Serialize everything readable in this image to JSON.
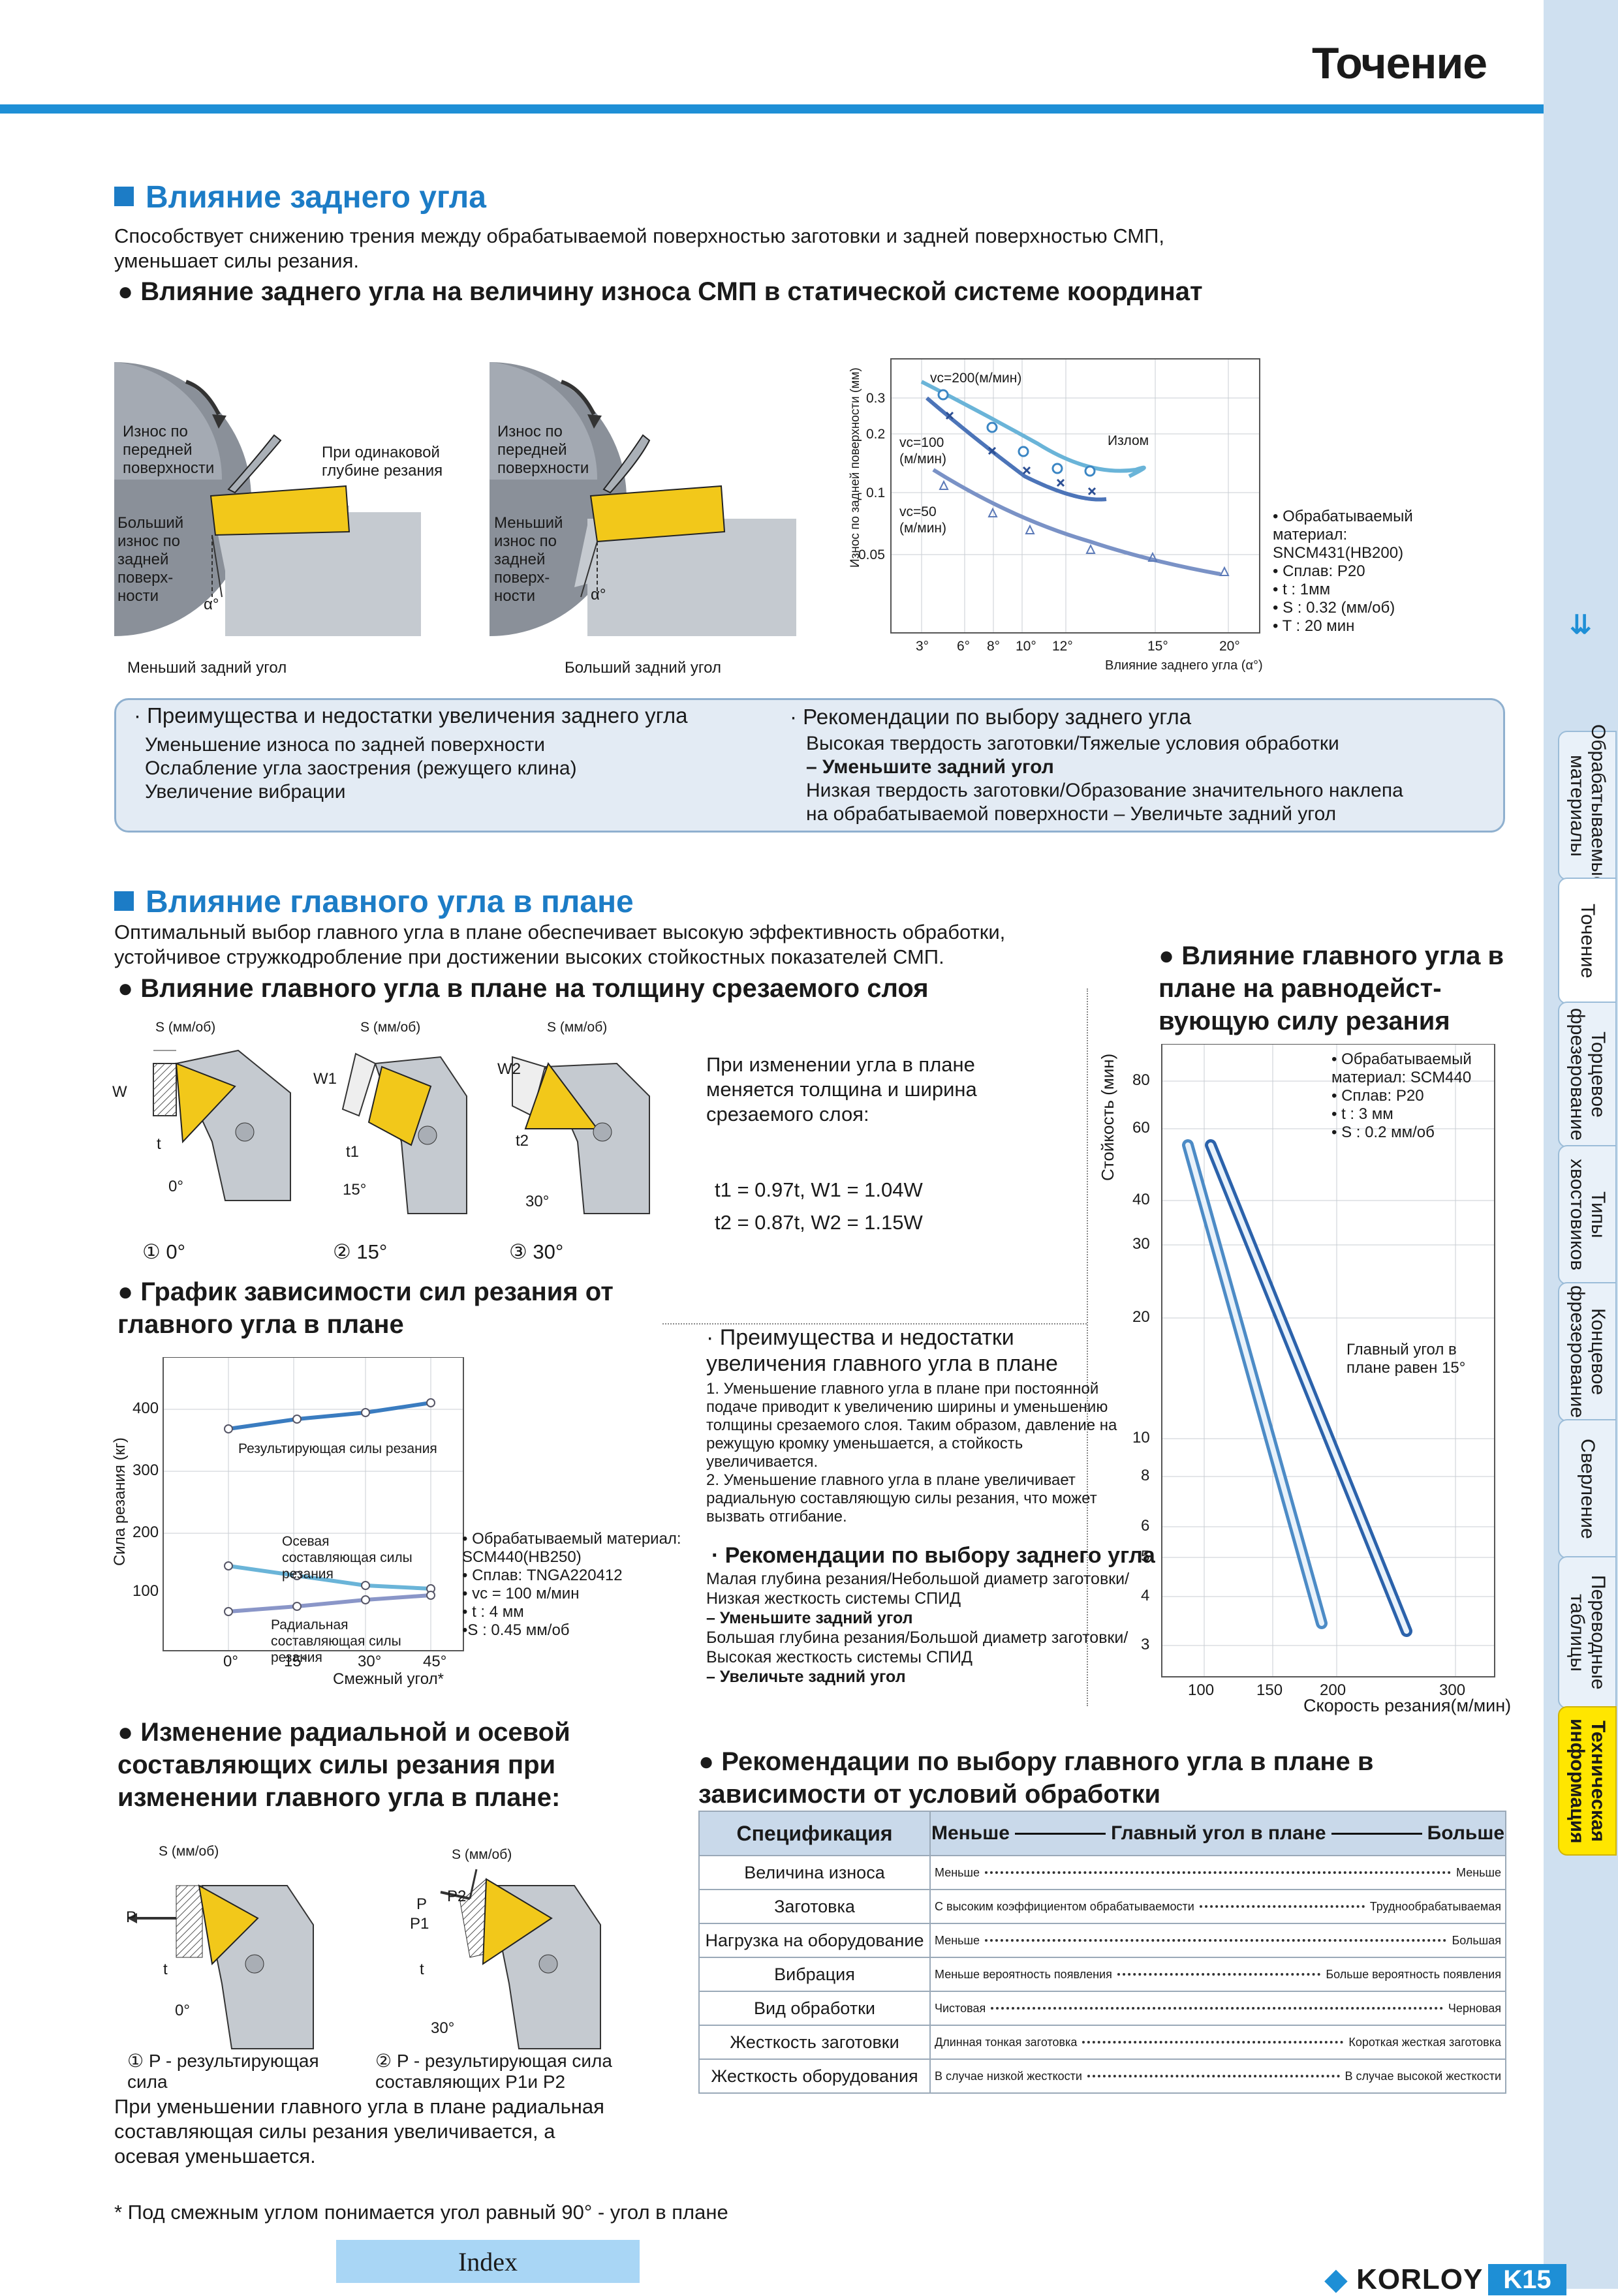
{
  "header": {
    "title": "Точение"
  },
  "section1": {
    "title": "Влияние заднего угла",
    "text": "Способствует снижению трения между обрабатываемой поверхностью заготовки и задней поверхностью СМП, уменьшает силы резания.",
    "subtitle": "Влияние заднего угла на величину износа СМП в статической системе координат",
    "diag_left": {
      "label_wear_front": "Износ по передней поверхности",
      "label_same_depth": "При одинаковой глубине резания",
      "label_more_wear": "Больший износ по задней поверх-ности",
      "angle": "α°",
      "caption": "Меньший задний угол"
    },
    "diag_right": {
      "label_wear_front": "Износ по передней поверхности",
      "label_less_wear": "Меньший износ по задней поверх-ности",
      "angle": "α°",
      "caption": "Больший задний угол"
    },
    "wear_chart": {
      "ylabel": "Износ по задней поверхности (мм)",
      "xlabel": "Влияние заднего угла (α°)",
      "y_ticks": [
        "0.3",
        "0.2",
        "0.1",
        "0.05"
      ],
      "x_ticks": [
        "3°",
        "6°",
        "8°",
        "10°",
        "12°",
        "15°",
        "20°"
      ],
      "annotation": "Излом",
      "series_labels": [
        "vc=200(м/мин)",
        "vc=100 (м/мин)",
        "vc=50 (м/мин)"
      ]
    },
    "conditions": [
      "• Обрабатываемый материал: SNCM431(HB200)",
      "• Сплав: P20",
      "• t : 1мм",
      "• S : 0.32 (мм/об)",
      "• T : 20 мин"
    ],
    "box_left_title": "· Преимущества и недостатки увеличения заднего угла",
    "box_left_items": [
      "Уменьшение износа по задней поверхности",
      "Ослабление угла заострения (режущего клина)",
      "Увеличение вибрации"
    ],
    "box_right_title": "· Рекомендации по выбору заднего угла",
    "box_right_items": [
      "Высокая твердость заготовки/Тяжелые условия обработки",
      "– Уменьшите задний угол",
      "Низкая твердость заготовки/Образование значительного наклепа",
      "на обрабатываемой поверхности – Увеличьте задний угол"
    ]
  },
  "section2": {
    "title": "Влияние главного угла в плане",
    "text": "Оптимальный выбор главного угла в плане обеспечивает высокую эффективность обработки, устойчивое стружкодробление при достижении высоких стойкостных показателей СМП.",
    "subtitle": "Влияние главного угла в плане на толщину срезаемого слоя",
    "inserts": [
      {
        "s": "S (мм/об)",
        "w": "W",
        "t": "t",
        "angle": "0°",
        "caption": "① 0°"
      },
      {
        "s": "S (мм/об)",
        "w": "W1",
        "t": "t1",
        "angle": "15°",
        "caption": "② 15°"
      },
      {
        "s": "S (мм/об)",
        "w": "W2",
        "t": "t2",
        "angle": "30°",
        "caption": "③ 30°"
      }
    ],
    "change_text": "При изменении угла в плане меняется толщина и ширина срезаемого слоя:",
    "formula1": "t1 = 0.97t,  W1 = 1.04W",
    "formula2": "t2 = 0.87t,  W2 = 1.15W",
    "force_chart_title": "График зависимости сил резания от главного угла в плане",
    "force_chart": {
      "ylabel": "Сила резания (кг)",
      "xlabel": "Смежный угол*",
      "y_ticks": [
        "400",
        "300",
        "200",
        "100"
      ],
      "x_ticks": [
        "0°",
        "15°",
        "30°",
        "45°"
      ],
      "label_result": "Результирующая силы резания",
      "label_axial": "Осевая составляющая силы резания",
      "label_radial": "Радиальная составляющая силы резания"
    },
    "force_conditions": [
      "• Обрабатываемый материал: SCM440(HB250)",
      "• Сплав: TNGA220412",
      "• vc = 100 м/мин",
      "• t : 4 мм",
      "•S : 0.45 мм/об"
    ],
    "adv_title": "· Преимущества и недостатки увеличения главного угла в плане",
    "adv_items": [
      "1. Уменьшение главного угла в плане при постоянной подаче приводит к увеличению ширины и уменьшению толщины срезаемого слоя. Таким образом, давление на режущую кромку уменьшается, а стойкость увеличивается.",
      "2. Уменьшение главного угла в плане увеличивает радиальную составляющую силы резания, что может вызвать отгибание."
    ],
    "rec_title": "· Рекомендации по выбору заднего угла",
    "rec_items": [
      "Малая глубина резания/Небольшой диаметр заготовки/ Низкая жесткость системы СПИД",
      "– Уменьшите задний угол",
      "Большая глубина резания/Большой диаметр заготовки/ Высокая жесткость системы СПИД",
      "– Увеличьте задний угол"
    ],
    "life_title": "Влияние главного угла в плане на равнодейст-вующую силу резания",
    "life_chart": {
      "ylabel": "Стойкость (мин)",
      "xlabel": "Скорость резания(м/мин)",
      "y_ticks": [
        "80",
        "60",
        "40",
        "30",
        "20",
        "10",
        "8",
        "6",
        "5",
        "4",
        "3"
      ],
      "x_ticks": [
        "100",
        "150",
        "200",
        "300"
      ],
      "conditions": [
        "• Обрабатываемый материал: SCM440",
        "• Сплав: P20",
        "• t : 3 мм",
        "• S : 0.2 мм/об"
      ],
      "annotation": "Главный угол в плане равен 15°"
    },
    "radial_title": "Изменение радиальной и осевой составляющих силы резания при изменении главного угла в плане:",
    "radial_diag1": {
      "s": "S (мм/об)",
      "p": "P",
      "t": "t",
      "angle": "0°",
      "caption": "① P - результирующая сила"
    },
    "radial_diag2": {
      "s": "S (мм/об)",
      "p": "P",
      "p1": "P1",
      "p2": "P2",
      "t": "t",
      "angle": "30°",
      "caption": "② P - результирующая сила составляющих P1и P2"
    },
    "radial_text": "При уменьшении главного угла в плане радиальная составляющая силы резания увеличивается, а осевая уменьшается.",
    "footnote": "* Под смежным углом понимается угол равный 90° - угол в плане",
    "table_title": "Рекомендации по выбору главного угла в плане в зависимости от условий обработки",
    "table": {
      "head_spec": "Спецификация",
      "head_less": "Меньше",
      "head_mid": "Главный угол в плане",
      "head_more": "Больше",
      "rows": [
        {
          "spec": "Величина износа",
          "left": "Меньше",
          "right": "Меньше"
        },
        {
          "spec": "Заготовка",
          "left": "С высоким коэффициентом обрабатываемости",
          "right": "Труднообрабатываемая"
        },
        {
          "spec": "Нагрузка на оборудование",
          "left": "Меньше",
          "right": "Большая"
        },
        {
          "spec": "Вибрация",
          "left": "Меньше вероятность появления",
          "right": "Больше вероятность появления"
        },
        {
          "spec": "Вид обработки",
          "left": "Чистовая",
          "right": "Черновая"
        },
        {
          "spec": "Жесткость заготовки",
          "left": "Длинная тонкая заготовка",
          "right": "Короткая жесткая заготовка"
        },
        {
          "spec": "Жесткость оборудования",
          "left": "В случае низкой жесткости",
          "right": "В случае высокой жесткости"
        }
      ]
    }
  },
  "sidebar": {
    "tabs": [
      "Обрабатываемые материалы",
      "Точение",
      "Торцевое фрезерование",
      "Типы хвостовиков",
      "Концевое фрезерование",
      "Сверление",
      "Переводные таблицы",
      "Техническая информация"
    ]
  },
  "footer": {
    "index": "Index",
    "logo": "KORLOY",
    "page": "K15"
  }
}
